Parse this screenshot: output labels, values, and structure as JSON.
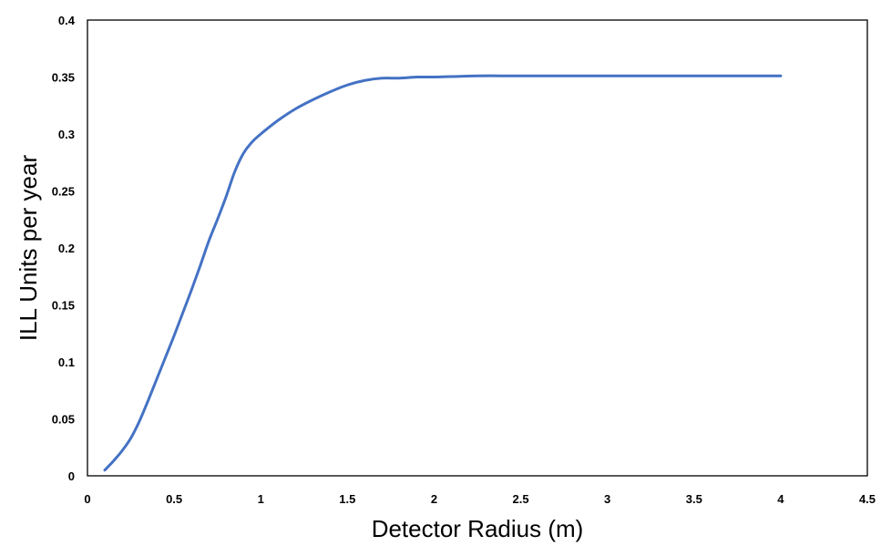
{
  "chart_data": {
    "type": "line",
    "title": "",
    "xlabel": "Detector Radius (m)",
    "ylabel": "ILL Units per year",
    "xlim": [
      0,
      4.5
    ],
    "ylim": [
      0,
      0.4
    ],
    "grid": false,
    "legend": "none",
    "x_ticks": [
      "0",
      "0.5",
      "1",
      "1.5",
      "2",
      "2.5",
      "3",
      "3.5",
      "4",
      "4.5"
    ],
    "y_ticks": [
      "0",
      "0.05",
      "0.1",
      "0.15",
      "0.2",
      "0.25",
      "0.3",
      "0.35",
      "0.4"
    ],
    "series": [
      {
        "color": "#4472C4",
        "x": [
          0.1,
          0.15,
          0.2,
          0.25,
          0.3,
          0.35,
          0.4,
          0.45,
          0.5,
          0.55,
          0.6,
          0.65,
          0.7,
          0.75,
          0.8,
          0.85,
          0.9,
          0.95,
          1.0,
          1.1,
          1.2,
          1.3,
          1.4,
          1.5,
          1.6,
          1.7,
          1.8,
          1.9,
          2.0,
          2.25,
          2.5,
          3.0,
          3.5,
          4.0
        ],
        "y": [
          0.005,
          0.013,
          0.022,
          0.033,
          0.048,
          0.066,
          0.085,
          0.104,
          0.123,
          0.143,
          0.163,
          0.184,
          0.206,
          0.225,
          0.245,
          0.267,
          0.283,
          0.293,
          0.3,
          0.312,
          0.322,
          0.33,
          0.337,
          0.343,
          0.347,
          0.349,
          0.349,
          0.35,
          0.35,
          0.351,
          0.351,
          0.351,
          0.351,
          0.351
        ]
      }
    ]
  }
}
